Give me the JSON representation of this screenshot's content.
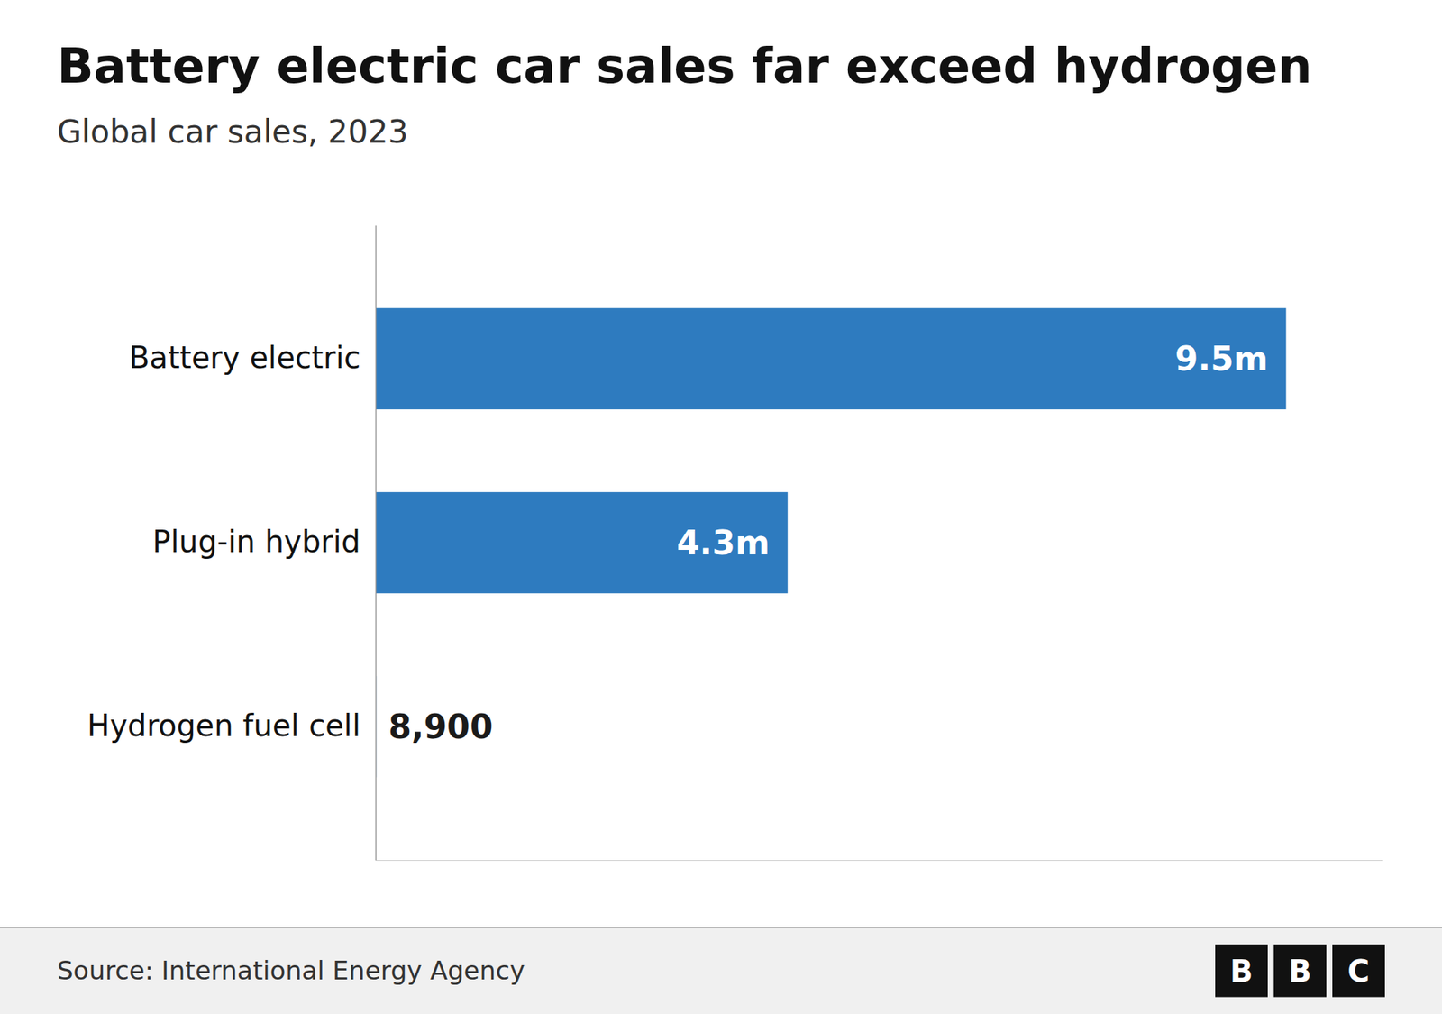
{
  "chart_data": {
    "type": "bar",
    "orientation": "horizontal",
    "title": "Battery electric car sales far exceed hydrogen",
    "subtitle": "Global car sales, 2023",
    "source": "Source: International Energy Agency",
    "logo": [
      "B",
      "B",
      "C"
    ],
    "categories": [
      "Battery electric",
      "Plug-in hybrid",
      "Hydrogen fuel cell"
    ],
    "values": [
      9500000,
      4300000,
      8900
    ],
    "value_labels": [
      "9.5m",
      "4.3m",
      "8,900"
    ],
    "data_labels": true,
    "color": "#2e7bbf",
    "xlim": [
      0,
      10500000
    ],
    "tick_labels": "y",
    "grid": false
  }
}
